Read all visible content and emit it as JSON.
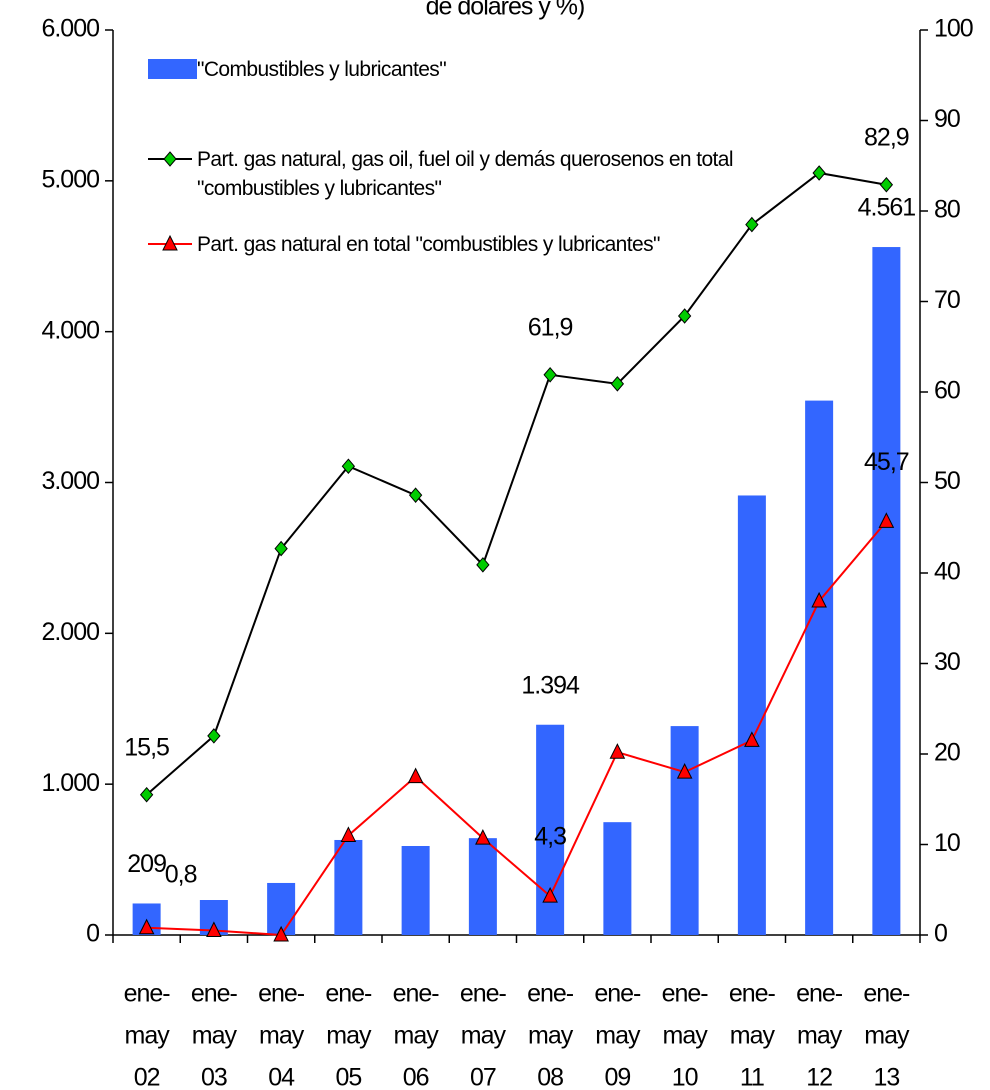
{
  "chart_data": {
    "type": "combo",
    "title": "de dolares y %)",
    "categories": [
      [
        "ene-",
        "may",
        "02"
      ],
      [
        "ene-",
        "may",
        "03"
      ],
      [
        "ene-",
        "may",
        "04"
      ],
      [
        "ene-",
        "may",
        "05"
      ],
      [
        "ene-",
        "may",
        "06"
      ],
      [
        "ene-",
        "may",
        "07"
      ],
      [
        "ene-",
        "may",
        "08"
      ],
      [
        "ene-",
        "may",
        "09"
      ],
      [
        "ene-",
        "may",
        "10"
      ],
      [
        "ene-",
        "may",
        "11"
      ],
      [
        "ene-",
        "may",
        "12"
      ],
      [
        "ene-",
        "may",
        "13"
      ]
    ],
    "ylim": [
      0,
      6000
    ],
    "yticks": [
      0,
      {
        "value": 1000,
        "label": "1.000"
      },
      {
        "value": 2000,
        "label": "2.000"
      },
      {
        "value": 3000,
        "label": "3.000"
      },
      {
        "value": 4000,
        "label": "4.000"
      },
      {
        "value": 5000,
        "label": "5.000"
      },
      {
        "value": 6000,
        "label": "6.000"
      }
    ],
    "y2lim": [
      0,
      100
    ],
    "y2ticks": [
      0,
      10,
      20,
      30,
      40,
      50,
      60,
      70,
      80,
      90,
      100
    ],
    "series": [
      {
        "type": "bar",
        "name": "\"Combustibles y lubricantes\"",
        "color": "#3366ff",
        "values": [
          209,
          232,
          345,
          630,
          590,
          642,
          1394,
          748,
          1385,
          2914,
          3543,
          4561
        ],
        "value_labels": [
          "209",
          null,
          null,
          null,
          null,
          null,
          "1.394",
          null,
          null,
          null,
          null,
          "4.561"
        ]
      },
      {
        "type": "line",
        "axis": "y2",
        "marker": "diamond",
        "name": "Part. gas natural, gas oil, fuel oil y demás querosenos en total \"combustibles y lubricantes\"",
        "color": "#000000",
        "marker_color": "#00cc00",
        "values": [
          15.5,
          22.0,
          42.7,
          51.8,
          48.6,
          40.9,
          61.9,
          60.9,
          68.4,
          78.5,
          84.2,
          82.9
        ],
        "value_labels": [
          "15,5",
          null,
          null,
          null,
          null,
          null,
          "61,9",
          null,
          null,
          null,
          null,
          "82,9"
        ]
      },
      {
        "type": "line",
        "axis": "y2",
        "marker": "triangle",
        "name": "Part. gas natural en total \"combustibles y lubricantes\"",
        "color": "#ff0000",
        "marker_color": "#ff0000",
        "values": [
          0.8,
          0.5,
          0.0,
          11.0,
          17.5,
          10.7,
          4.3,
          20.2,
          18.0,
          21.5,
          36.9,
          45.7
        ],
        "value_labels": [
          "0,8",
          null,
          null,
          null,
          null,
          null,
          "4,3",
          null,
          null,
          null,
          null,
          "45,7"
        ]
      }
    ]
  }
}
